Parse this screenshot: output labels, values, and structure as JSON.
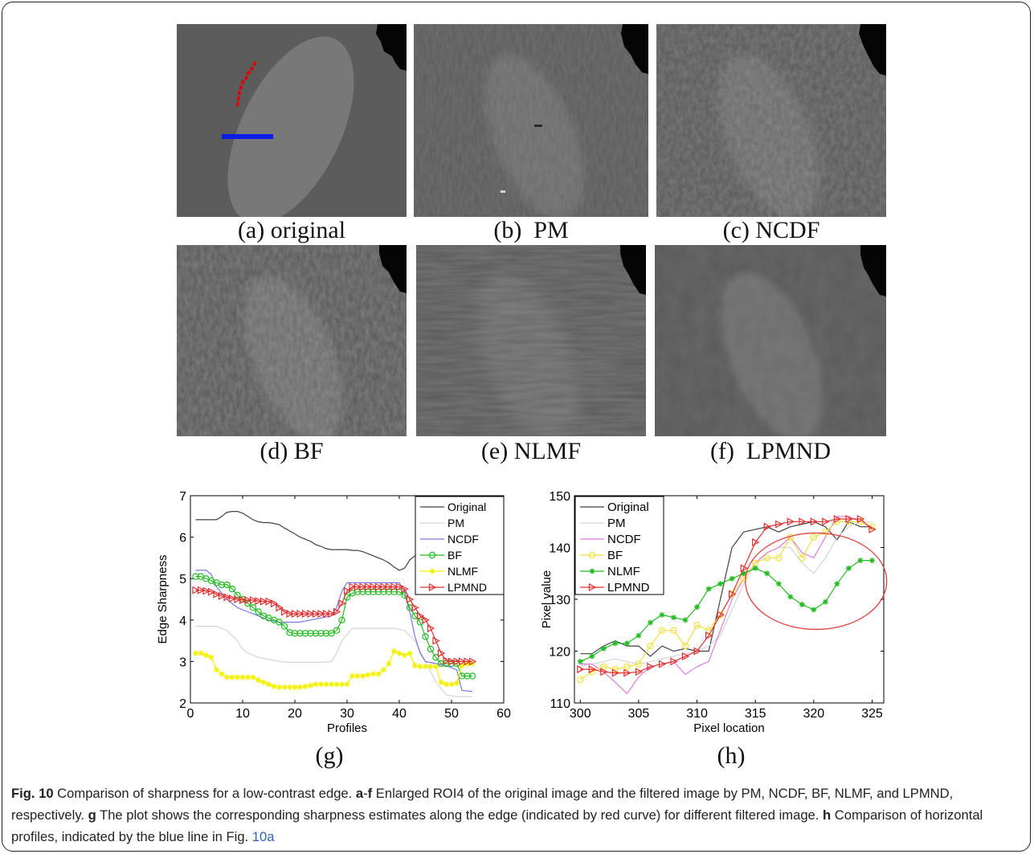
{
  "panels": [
    {
      "id": "a",
      "label": "(a) original"
    },
    {
      "id": "b",
      "label": "(b)  PM"
    },
    {
      "id": "c",
      "label": "(c) NCDF"
    },
    {
      "id": "d",
      "label": "(d) BF"
    },
    {
      "id": "e",
      "label": "(e) NLMF"
    },
    {
      "id": "f",
      "label": "(f)  LPMND"
    }
  ],
  "colors": {
    "original": "#404040",
    "pm": "#d4d4d4",
    "ncdf": "#7878e6",
    "bf": "#22bb22",
    "nlmf": "#f2f200",
    "lpmnd": "#e03030",
    "ncdf_h": "#e07ae0",
    "bf_h": "#f0e040",
    "nlmf_h": "#22bb22",
    "red_curve": "#e00000",
    "blue_line": "#0a1ee6"
  },
  "plot_labels": {
    "g": "(g)",
    "h": "(h)"
  },
  "chart_data": [
    {
      "type": "line",
      "panel": "g",
      "xlabel": "Profiles",
      "ylabel": "Edge Sharpness",
      "xlim": [
        0,
        60
      ],
      "ylim": [
        2,
        7
      ],
      "xticks": [
        0,
        10,
        20,
        30,
        40,
        50,
        60
      ],
      "yticks": [
        2,
        3,
        4,
        5,
        6,
        7
      ],
      "legend_placement": "top-right",
      "series": [
        {
          "name": "Original",
          "key": "original",
          "marker": "none",
          "x": [
            1,
            2,
            3,
            4,
            5,
            6,
            7,
            8,
            9,
            10,
            11,
            12,
            13,
            14,
            15,
            16,
            17,
            18,
            19,
            20,
            21,
            22,
            23,
            24,
            25,
            26,
            27,
            28,
            29,
            30,
            31,
            32,
            33,
            34,
            35,
            36,
            37,
            38,
            39,
            40,
            41,
            42,
            43
          ],
          "y": [
            6.42,
            6.42,
            6.42,
            6.42,
            6.42,
            6.5,
            6.6,
            6.62,
            6.62,
            6.58,
            6.5,
            6.42,
            6.37,
            6.35,
            6.35,
            6.33,
            6.3,
            6.22,
            6.15,
            6.08,
            6.0,
            5.95,
            5.9,
            5.82,
            5.78,
            5.72,
            5.7,
            5.7,
            5.7,
            5.7,
            5.68,
            5.68,
            5.65,
            5.6,
            5.55,
            5.5,
            5.45,
            5.38,
            5.28,
            5.2,
            5.25,
            5.45,
            5.55
          ]
        },
        {
          "name": "PM",
          "key": "pm",
          "marker": "none",
          "x": [
            1,
            3,
            5,
            7,
            9,
            10,
            11,
            13,
            15,
            17,
            19,
            21,
            23,
            25,
            27,
            28,
            29,
            31,
            33,
            35,
            37,
            39,
            41,
            43,
            45,
            47,
            49,
            51,
            54
          ],
          "y": [
            3.85,
            3.85,
            3.85,
            3.75,
            3.5,
            3.3,
            3.2,
            3.1,
            3.05,
            3.0,
            2.98,
            2.98,
            2.98,
            2.98,
            3.0,
            3.2,
            3.5,
            3.8,
            3.8,
            3.8,
            3.8,
            3.8,
            3.75,
            3.5,
            3.0,
            2.5,
            2.2,
            2.15,
            2.15
          ]
        },
        {
          "name": "NCDF",
          "key": "ncdf",
          "marker": "none",
          "x": [
            1,
            3,
            4,
            5,
            7,
            9,
            11,
            13,
            15,
            17,
            19,
            21,
            23,
            25,
            27,
            28,
            29,
            30,
            31,
            33,
            35,
            37,
            39,
            40,
            41,
            42,
            43,
            44,
            45,
            47,
            49,
            51,
            52,
            54
          ],
          "y": [
            5.2,
            5.2,
            5.1,
            4.8,
            4.5,
            4.3,
            4.2,
            4.1,
            4.0,
            3.95,
            3.95,
            3.95,
            4.0,
            4.05,
            4.1,
            4.3,
            4.7,
            4.9,
            4.9,
            4.9,
            4.9,
            4.9,
            4.9,
            4.9,
            4.7,
            4.2,
            3.6,
            3.2,
            3.0,
            2.95,
            2.9,
            2.8,
            2.3,
            2.28
          ]
        },
        {
          "name": "BF",
          "key": "bf",
          "marker": "circle",
          "x": [
            1,
            2,
            3,
            4,
            5,
            6,
            7,
            8,
            9,
            10,
            11,
            12,
            13,
            14,
            15,
            16,
            17,
            18,
            19,
            20,
            21,
            22,
            23,
            24,
            25,
            26,
            27,
            28,
            29,
            30,
            31,
            32,
            33,
            34,
            35,
            36,
            37,
            38,
            39,
            40,
            41,
            42,
            43,
            44,
            45,
            46,
            47,
            48,
            49,
            50,
            51,
            52,
            53,
            54
          ],
          "y": [
            5.05,
            5.05,
            5.0,
            4.95,
            4.9,
            4.85,
            4.85,
            4.75,
            4.6,
            4.5,
            4.4,
            4.3,
            4.2,
            4.1,
            4.05,
            4.0,
            3.95,
            3.85,
            3.7,
            3.68,
            3.68,
            3.68,
            3.68,
            3.68,
            3.68,
            3.68,
            3.68,
            3.75,
            4.0,
            4.55,
            4.65,
            4.68,
            4.68,
            4.68,
            4.68,
            4.68,
            4.68,
            4.68,
            4.68,
            4.68,
            4.6,
            4.3,
            4.1,
            3.95,
            3.6,
            3.3,
            3.1,
            2.95,
            2.95,
            2.95,
            2.95,
            2.65,
            2.65,
            2.65
          ]
        },
        {
          "name": "NLMF",
          "key": "nlmf",
          "marker": "star",
          "x": [
            1,
            2,
            3,
            4,
            5,
            6,
            7,
            8,
            9,
            10,
            11,
            12,
            13,
            14,
            15,
            16,
            17,
            18,
            19,
            20,
            21,
            22,
            23,
            24,
            25,
            26,
            27,
            28,
            29,
            30,
            31,
            32,
            33,
            34,
            35,
            36,
            37,
            38,
            39,
            40,
            41,
            42,
            43,
            44,
            45,
            46,
            47,
            48,
            49,
            50,
            51,
            52,
            53,
            54
          ],
          "y": [
            3.2,
            3.2,
            3.15,
            3.1,
            2.8,
            2.7,
            2.62,
            2.62,
            2.62,
            2.62,
            2.62,
            2.62,
            2.55,
            2.5,
            2.45,
            2.4,
            2.38,
            2.38,
            2.38,
            2.38,
            2.38,
            2.4,
            2.42,
            2.45,
            2.45,
            2.45,
            2.45,
            2.45,
            2.45,
            2.45,
            2.65,
            2.65,
            2.65,
            2.68,
            2.7,
            2.7,
            2.8,
            2.95,
            3.25,
            3.2,
            3.15,
            3.2,
            2.9,
            2.88,
            2.88,
            2.88,
            2.88,
            2.5,
            2.45,
            2.45,
            2.48,
            2.9,
            2.95,
            2.95
          ]
        },
        {
          "name": "LPMND",
          "key": "lpmnd",
          "marker": "triangle-right",
          "x": [
            1,
            2,
            3,
            4,
            5,
            6,
            7,
            8,
            9,
            10,
            11,
            12,
            13,
            14,
            15,
            16,
            17,
            18,
            19,
            20,
            21,
            22,
            23,
            24,
            25,
            26,
            27,
            28,
            29,
            30,
            31,
            32,
            33,
            34,
            35,
            36,
            37,
            38,
            39,
            40,
            41,
            42,
            43,
            44,
            45,
            46,
            47,
            48,
            49,
            50,
            51,
            52,
            53,
            54
          ],
          "y": [
            4.72,
            4.72,
            4.7,
            4.68,
            4.62,
            4.58,
            4.55,
            4.52,
            4.5,
            4.48,
            4.48,
            4.48,
            4.46,
            4.45,
            4.45,
            4.4,
            4.3,
            4.2,
            4.15,
            4.15,
            4.15,
            4.15,
            4.15,
            4.15,
            4.15,
            4.15,
            4.15,
            4.2,
            4.4,
            4.7,
            4.8,
            4.8,
            4.8,
            4.8,
            4.8,
            4.8,
            4.8,
            4.8,
            4.8,
            4.8,
            4.75,
            4.5,
            4.3,
            4.1,
            4.0,
            3.8,
            3.5,
            3.2,
            3.02,
            3.0,
            3.0,
            3.0,
            3.0,
            3.0
          ]
        }
      ]
    },
    {
      "type": "line",
      "panel": "h",
      "xlabel": "Pixel location",
      "ylabel": "Pixel value",
      "xlim": [
        299.5,
        326
      ],
      "ylim": [
        110,
        150
      ],
      "xticks": [
        300,
        305,
        310,
        315,
        320,
        325
      ],
      "yticks": [
        110,
        120,
        130,
        140,
        150
      ],
      "legend_placement": "top-left",
      "annotation": "red ellipse around x 315-326",
      "series": [
        {
          "name": "Original",
          "key": "original",
          "marker": "none",
          "x": [
            300,
            301,
            302,
            303,
            304,
            305,
            306,
            307,
            308,
            309,
            310,
            311,
            312,
            313,
            314,
            315,
            316,
            317,
            318,
            319,
            320,
            321,
            322,
            323,
            324,
            325
          ],
          "y": [
            119.5,
            119.5,
            121,
            122,
            121,
            121,
            119,
            121,
            120,
            120.5,
            120,
            120,
            130,
            140,
            143,
            143.5,
            144,
            143,
            144,
            144.5,
            145,
            144,
            141.5,
            145,
            144,
            144
          ]
        },
        {
          "name": "PM",
          "key": "pm",
          "marker": "none",
          "x": [
            300,
            301,
            302,
            303,
            304,
            305,
            306,
            307,
            308,
            309,
            310,
            311,
            312,
            313,
            314,
            315,
            316,
            317,
            318,
            319,
            320,
            321,
            322,
            323,
            324,
            325
          ],
          "y": [
            117,
            117.5,
            118,
            118.5,
            118,
            117.5,
            118,
            118.5,
            119,
            119.5,
            120,
            121,
            123,
            128,
            133,
            137,
            139,
            140,
            140,
            137,
            135,
            138,
            142,
            144,
            145,
            145
          ]
        },
        {
          "name": "NCDF",
          "key": "ncdf_h",
          "marker": "none",
          "x": [
            300,
            301,
            302,
            303,
            304,
            305,
            306,
            307,
            308,
            309,
            310,
            311,
            312,
            313,
            314,
            315,
            316,
            317,
            318,
            319,
            320,
            321,
            322,
            323,
            324,
            325
          ],
          "y": [
            117.5,
            117.5,
            116,
            114,
            111.8,
            115,
            117,
            117.5,
            118,
            115.5,
            117,
            118,
            124,
            130,
            134,
            137,
            139,
            140,
            142,
            139,
            138,
            142,
            146,
            146,
            145,
            144
          ]
        },
        {
          "name": "BF",
          "key": "bf_h",
          "marker": "circle",
          "x": [
            300,
            301,
            302,
            303,
            304,
            305,
            306,
            307,
            308,
            309,
            310,
            311,
            312,
            313,
            314,
            315,
            316,
            317,
            318,
            319,
            320,
            321,
            322,
            323,
            324,
            325
          ],
          "y": [
            114.5,
            116,
            117,
            116.5,
            117,
            117.5,
            121,
            124,
            124,
            121,
            125,
            124,
            127,
            131,
            134,
            137,
            138,
            138,
            142,
            138,
            142,
            143,
            145,
            145,
            145,
            144
          ]
        },
        {
          "name": "NLMF",
          "key": "nlmf_h",
          "marker": "star",
          "x": [
            300,
            301,
            302,
            303,
            304,
            305,
            306,
            307,
            308,
            309,
            310,
            311,
            312,
            313,
            314,
            315,
            316,
            317,
            318,
            319,
            320,
            321,
            322,
            323,
            324,
            325
          ],
          "y": [
            118,
            119,
            120.5,
            121.5,
            121.5,
            123,
            125.5,
            127,
            126.5,
            126,
            128.5,
            132,
            133,
            134,
            135,
            136,
            135,
            133,
            130.5,
            129,
            128,
            129.5,
            133,
            136,
            137.5,
            137.5
          ]
        },
        {
          "name": "LPMND",
          "key": "lpmnd",
          "marker": "triangle-right",
          "x": [
            300,
            301,
            302,
            303,
            304,
            305,
            306,
            307,
            308,
            309,
            310,
            311,
            312,
            313,
            314,
            315,
            316,
            317,
            318,
            319,
            320,
            321,
            322,
            323,
            324,
            325
          ],
          "y": [
            116.5,
            116.5,
            116,
            115.8,
            115.8,
            116,
            117,
            117.5,
            118,
            119,
            120,
            123,
            127,
            131,
            136,
            141,
            144,
            144.5,
            145,
            145,
            145,
            145,
            145.5,
            145.5,
            145.5,
            143.5
          ]
        }
      ]
    }
  ],
  "caption": {
    "fig": "Fig. 10",
    "title": " Comparison of sharpness for a low-contrast edge. ",
    "a_f": "a",
    "dash": "-",
    "f": "f",
    "t1": " Enlarged ROI4 of the original image and the filtered image by PM, NCDF, BF, NLMF, and LPMND, respectively. ",
    "g": "g",
    "t2": " The plot shows the corresponding sharpness estimates along the edge (indicated by red curve) for different filtered image. ",
    "h": "h",
    "t3": " Comparison of horizontal profiles, indicated by the blue line in Fig. ",
    "ref": "10a"
  }
}
